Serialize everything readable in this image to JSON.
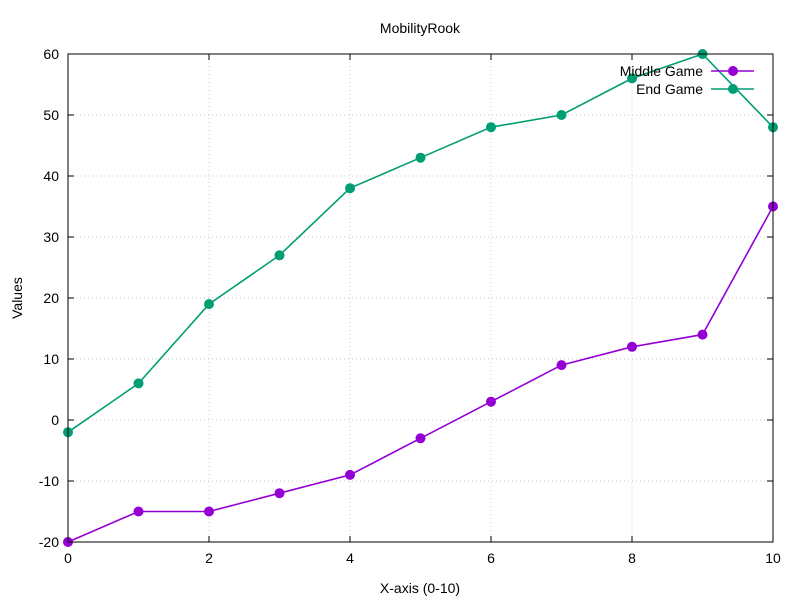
{
  "chart_data": {
    "type": "line",
    "title": "MobilityRook",
    "xlabel": "X-axis (0-10)",
    "ylabel": "Values",
    "x": [
      0,
      1,
      2,
      3,
      4,
      5,
      6,
      7,
      8,
      9,
      10
    ],
    "xlim": [
      0,
      10
    ],
    "ylim": [
      -20,
      60
    ],
    "xticks": [
      0,
      2,
      4,
      6,
      8,
      10
    ],
    "yticks": [
      -20,
      -10,
      0,
      10,
      20,
      30,
      40,
      50,
      60
    ],
    "grid": true,
    "legend_position": "top-right",
    "series": [
      {
        "name": "Middle Game",
        "color": "#9400d3",
        "values": [
          -20,
          -15,
          -15,
          -12,
          -9,
          -3,
          3,
          9,
          12,
          14,
          35
        ]
      },
      {
        "name": "End Game",
        "color": "#009e73",
        "values": [
          -2,
          6,
          19,
          27,
          38,
          43,
          48,
          50,
          56,
          60,
          48
        ]
      }
    ]
  }
}
